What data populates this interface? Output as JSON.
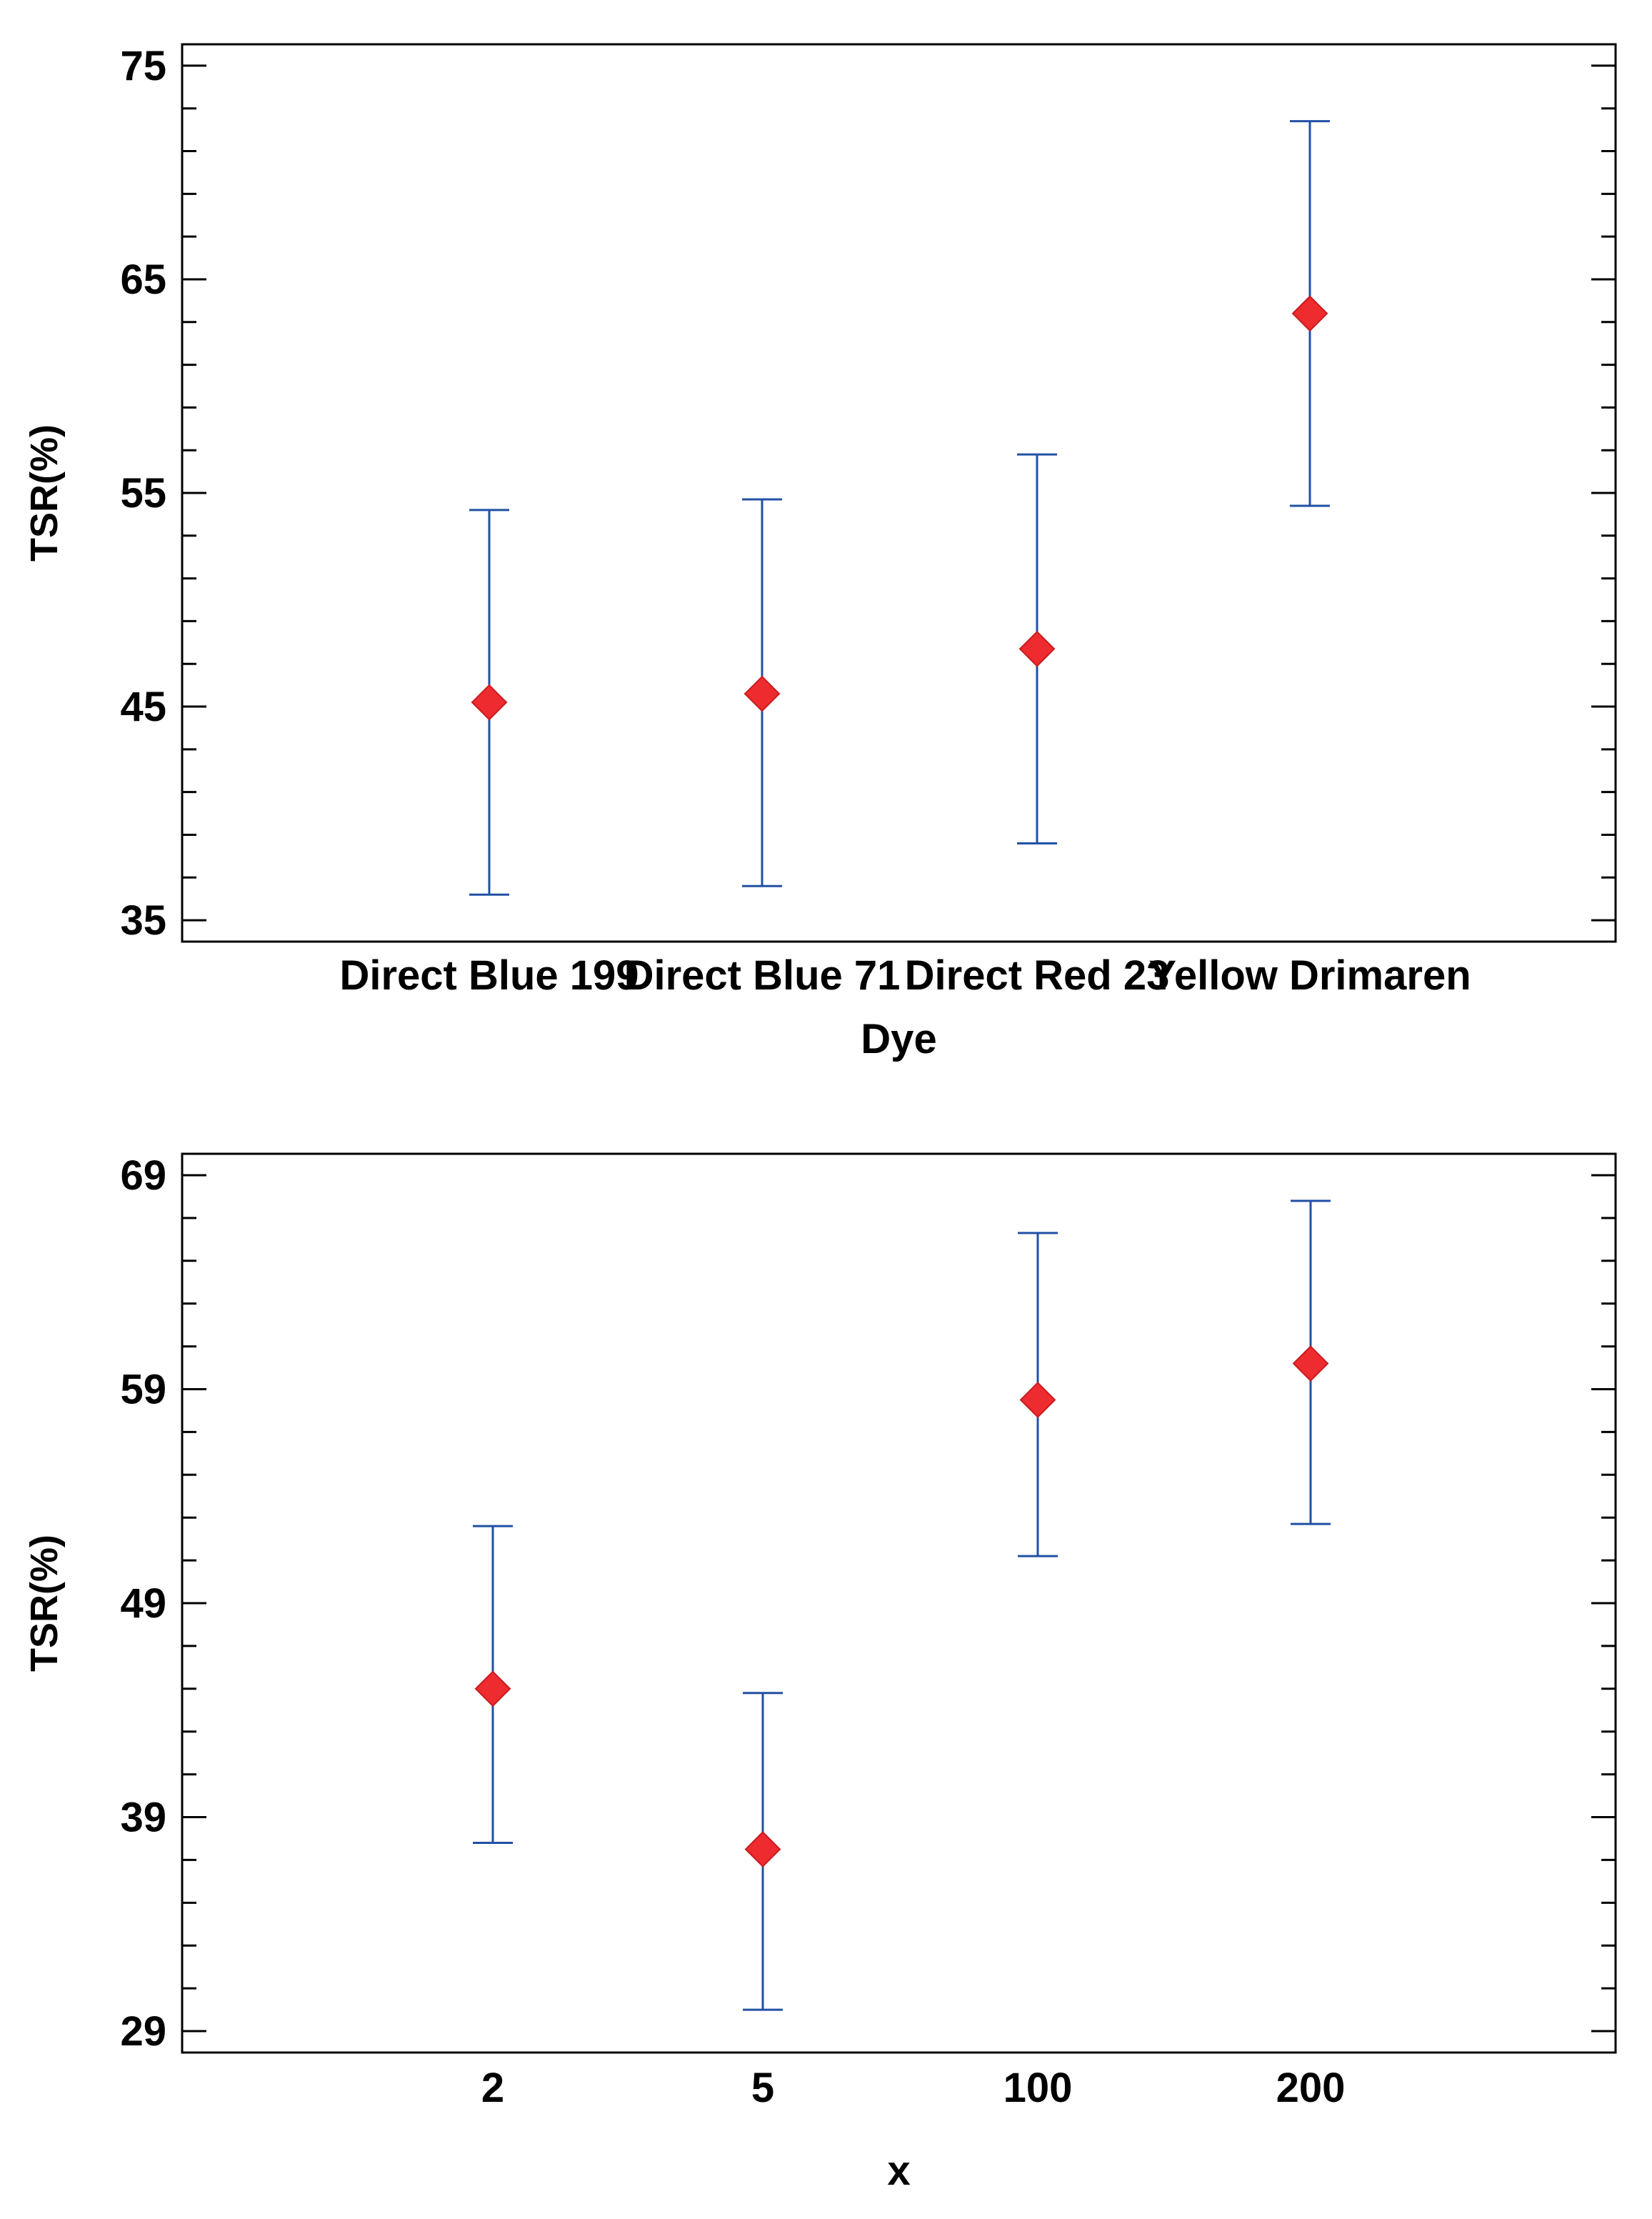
{
  "chart_data": [
    {
      "type": "scatter",
      "subtype": "means-with-intervals",
      "xlabel": "Dye",
      "ylabel": "TSR(%)",
      "ylim": [
        34,
        76
      ],
      "yticks": [
        35,
        45,
        55,
        65,
        75
      ],
      "categories": [
        "Direct Blue 199",
        "Direct Blue 71",
        "Direct Red 23",
        "Yellow Drimaren"
      ],
      "means": [
        45.2,
        45.6,
        47.7,
        63.4
      ],
      "lower": [
        36.2,
        36.6,
        38.6,
        54.4
      ],
      "upper": [
        54.2,
        54.7,
        56.8,
        72.4
      ],
      "marker_color": "#ee2b2f",
      "interval_color": "#2250a4"
    },
    {
      "type": "scatter",
      "subtype": "means-with-intervals",
      "xlabel": "x",
      "ylabel": "TSR(%)",
      "ylim": [
        28,
        70
      ],
      "yticks": [
        29,
        39,
        49,
        59,
        69
      ],
      "categories": [
        "2",
        "5",
        "100",
        "200"
      ],
      "means": [
        45.0,
        37.5,
        58.5,
        60.2
      ],
      "lower": [
        37.8,
        30.0,
        51.2,
        52.7
      ],
      "upper": [
        52.6,
        44.8,
        66.3,
        67.8
      ],
      "marker_color": "#ee2b2f",
      "interval_color": "#2250a4"
    }
  ]
}
